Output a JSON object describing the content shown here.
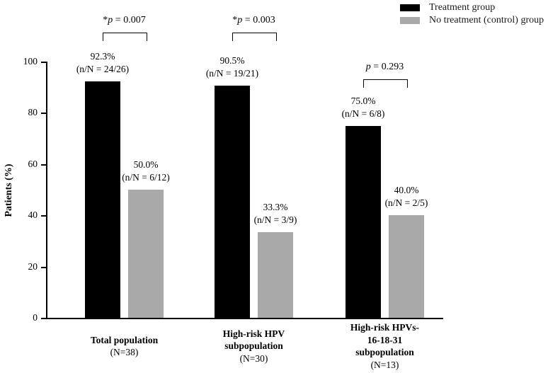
{
  "chart_data": {
    "type": "bar",
    "ylabel": "Patients (%)",
    "ylim": [
      0,
      100
    ],
    "yticks": [
      0,
      20,
      40,
      60,
      80,
      100
    ],
    "grid": false,
    "legend_position": "top-right",
    "legend": {
      "items": [
        {
          "label": "Treatment group",
          "color": "#000000"
        },
        {
          "label": "No treatment (control) group",
          "color": "#a9a9a9"
        }
      ]
    },
    "series_names": [
      "Treatment group",
      "No treatment (control) group"
    ],
    "groups": [
      {
        "label_lines": [
          "Total population"
        ],
        "n_line": "(N=38)",
        "p": {
          "star": "*",
          "var": "p",
          "rest": " = 0.007"
        },
        "bars": [
          {
            "series": "Treatment group",
            "pct": 92.3,
            "pct_label": "92.3%",
            "frac_label": "(n/N = 24/26)",
            "color": "#000000"
          },
          {
            "series": "No treatment (control) group",
            "pct": 50.0,
            "pct_label": "50.0%",
            "frac_label": "(n/N = 6/12)",
            "color": "#a9a9a9"
          }
        ]
      },
      {
        "label_lines": [
          "High-risk HPV",
          "subpopulation"
        ],
        "n_line": "(N=30)",
        "p": {
          "star": "*",
          "var": "p",
          "rest": " = 0.003"
        },
        "bars": [
          {
            "series": "Treatment group",
            "pct": 90.5,
            "pct_label": "90.5%",
            "frac_label": "(n/N = 19/21)",
            "color": "#000000"
          },
          {
            "series": "No treatment (control) group",
            "pct": 33.3,
            "pct_label": "33.3%",
            "frac_label": "(n/N = 3/9)",
            "color": "#a9a9a9"
          }
        ]
      },
      {
        "label_lines": [
          "High-risk HPVs-",
          "16-18-31",
          "subpopulation"
        ],
        "n_line": "(N=13)",
        "p": {
          "star": "",
          "var": "p",
          "rest": " = 0.293"
        },
        "bars": [
          {
            "series": "Treatment group",
            "pct": 75.0,
            "pct_label": "75.0%",
            "frac_label": "(n/N = 6/8)",
            "color": "#000000"
          },
          {
            "series": "No treatment (control) group",
            "pct": 40.0,
            "pct_label": "40.0%",
            "frac_label": "(n/N = 2/5)",
            "color": "#a9a9a9"
          }
        ]
      }
    ]
  }
}
